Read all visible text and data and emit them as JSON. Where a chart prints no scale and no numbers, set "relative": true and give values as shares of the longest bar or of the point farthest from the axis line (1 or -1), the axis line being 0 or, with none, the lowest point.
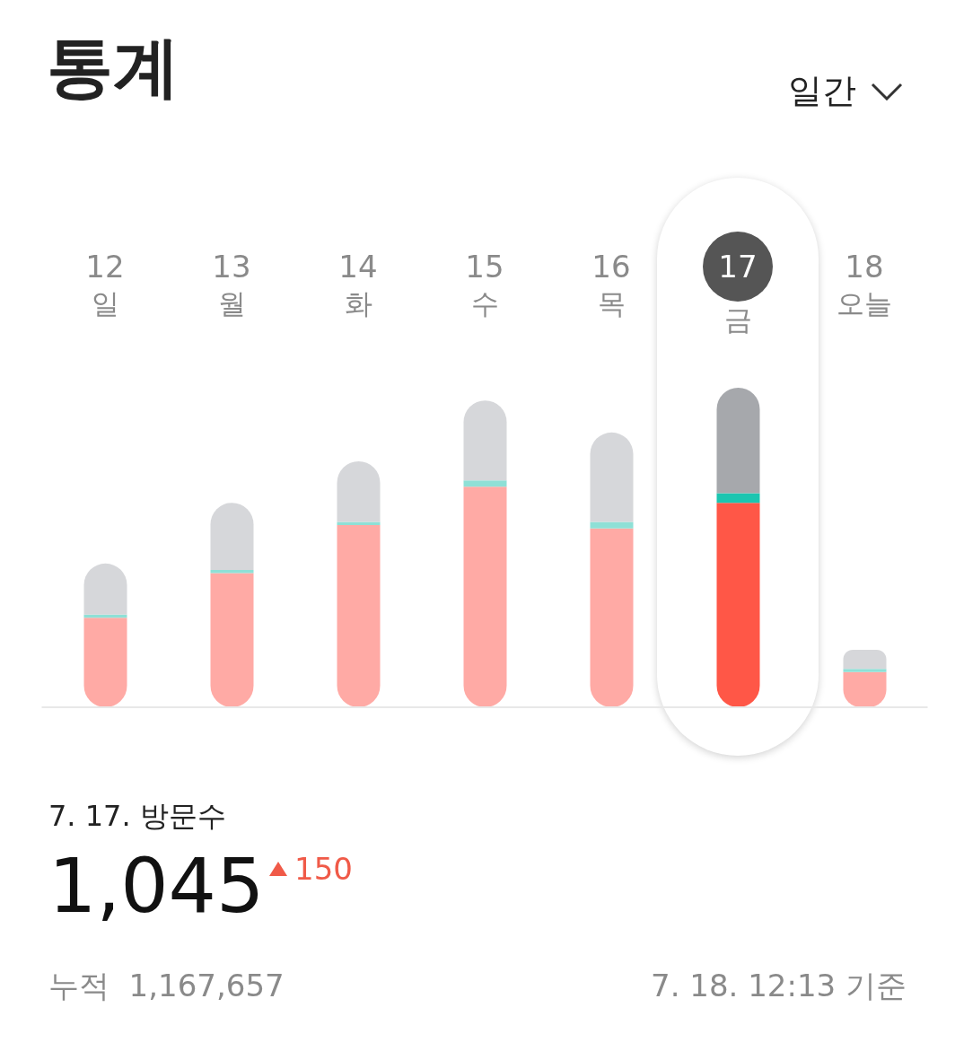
{
  "chart_data": {
    "type": "bar",
    "title": "통계",
    "subtitle": "일간",
    "categories": [
      "12\n일",
      "13\n월",
      "14\n화",
      "15\n수",
      "16\n목",
      "17\n금",
      "18\n오늘"
    ],
    "relative": true,
    "stacked": true,
    "legend": false,
    "series": [
      {
        "values": [
          0.28,
          0.42,
          0.57,
          0.69,
          0.56,
          0.64,
          0.11
        ],
        "colors": [
          "#ffaaa5",
          "#ffaaa5",
          "#ffaaa5",
          "#ffaaa5",
          "#ffaaa5",
          "#ff5747",
          "#ffaaa5"
        ]
      },
      {
        "values": [
          0.01,
          0.01,
          0.01,
          0.02,
          0.02,
          0.03,
          0.01
        ],
        "colors": [
          "#8ee0d6",
          "#8ee0d6",
          "#8ee0d6",
          "#8ee0d6",
          "#8ee0d6",
          "#1cc5b0",
          "#8ee0d6"
        ]
      },
      {
        "values": [
          0.16,
          0.21,
          0.19,
          0.25,
          0.28,
          0.33,
          0.06
        ],
        "colors": [
          "#d6d7da",
          "#d6d7da",
          "#d6d7da",
          "#d6d7da",
          "#d6d7da",
          "#a6a8ac",
          "#d6d7da"
        ]
      }
    ],
    "annotations": [
      "7. 17. 방문수",
      "1,045",
      "150",
      "누적  1,167,657",
      "7. 18. 12:13 기준"
    ]
  }
}
